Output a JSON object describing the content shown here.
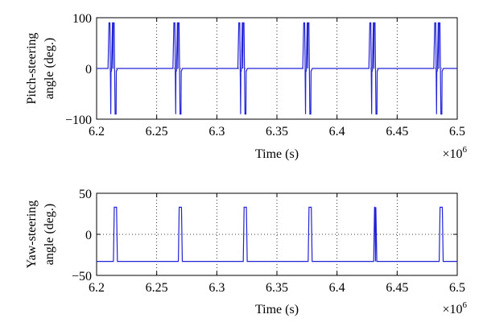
{
  "colors": {
    "line": "#2323d6",
    "axis": "#000000",
    "grid": "#000000"
  },
  "chart_data": [
    {
      "type": "line",
      "xlabel": "Time (s)",
      "ylabel_lines": [
        "Pitch-steering",
        "angle (deg.)"
      ],
      "x_multiplier": "×10",
      "x_multiplier_exp": "6",
      "xlim": [
        6.2,
        6.5
      ],
      "ylim": [
        -100,
        100
      ],
      "xticks": [
        6.2,
        6.25,
        6.3,
        6.35,
        6.4,
        6.45,
        6.5
      ],
      "xtick_labels": [
        "6.2",
        "6.25",
        "6.3",
        "6.35",
        "6.4",
        "6.45",
        "6.5"
      ],
      "yticks": [
        -100,
        0,
        100
      ],
      "ytick_labels": [
        "−100",
        "0",
        "100"
      ],
      "grid": true,
      "series": [
        {
          "x": [
            6.2,
            6.2095,
            6.2103,
            6.2111,
            6.2118,
            6.212,
            6.2124,
            6.2132,
            6.2134,
            6.2136,
            6.2138,
            6.2146,
            6.2154,
            6.2162,
            6.2164,
            6.2166,
            6.2174,
            6.2182,
            6.219,
            6.2635,
            6.2643,
            6.2651,
            6.2658,
            6.266,
            6.2664,
            6.2672,
            6.2674,
            6.2676,
            6.2678,
            6.2686,
            6.2694,
            6.2702,
            6.2704,
            6.2706,
            6.2714,
            6.2722,
            6.273,
            6.3175,
            6.3183,
            6.3191,
            6.3198,
            6.32,
            6.3204,
            6.3212,
            6.3214,
            6.3216,
            6.3218,
            6.3226,
            6.3234,
            6.3242,
            6.3244,
            6.3246,
            6.3254,
            6.3262,
            6.327,
            6.3715,
            6.3723,
            6.3731,
            6.3738,
            6.374,
            6.3744,
            6.3752,
            6.3754,
            6.3756,
            6.3758,
            6.3766,
            6.3774,
            6.3782,
            6.3784,
            6.3786,
            6.3794,
            6.3802,
            6.381,
            6.4265,
            6.4273,
            6.4281,
            6.4288,
            6.429,
            6.4294,
            6.4302,
            6.4304,
            6.4306,
            6.4308,
            6.4316,
            6.4324,
            6.4332,
            6.4334,
            6.4336,
            6.4344,
            6.4352,
            6.436,
            6.4805,
            6.4813,
            6.4821,
            6.4828,
            6.483,
            6.4834,
            6.4842,
            6.4844,
            6.4846,
            6.4848,
            6.4856,
            6.4864,
            6.4872,
            6.4874,
            6.4876,
            6.4884,
            6.4892,
            6.49,
            6.5
          ],
          "y": [
            0,
            0,
            90,
            90,
            -90,
            -5,
            -5,
            90,
            90,
            0,
            90,
            90,
            -90,
            -90,
            -5,
            -5,
            0,
            0,
            0,
            0,
            90,
            90,
            -90,
            -5,
            -5,
            90,
            90,
            0,
            90,
            90,
            -90,
            -90,
            -5,
            -5,
            0,
            0,
            0,
            0,
            90,
            90,
            -90,
            -5,
            -5,
            90,
            90,
            0,
            90,
            90,
            -90,
            -90,
            -5,
            -5,
            0,
            0,
            0,
            0,
            90,
            90,
            -90,
            -5,
            -5,
            90,
            90,
            0,
            90,
            90,
            -90,
            -90,
            -5,
            -5,
            0,
            0,
            0,
            0,
            90,
            90,
            -90,
            -5,
            -5,
            90,
            90,
            0,
            90,
            90,
            -90,
            -90,
            -5,
            -5,
            0,
            0,
            0,
            0,
            90,
            90,
            -90,
            -5,
            -5,
            90,
            90,
            0,
            90,
            90,
            -90,
            -90,
            -5,
            -5,
            0,
            0,
            0,
            0
          ]
        }
      ]
    },
    {
      "type": "line",
      "xlabel": "Time (s)",
      "ylabel_lines": [
        "Yaw-steering",
        "angle (deg.)"
      ],
      "x_multiplier": "×10",
      "x_multiplier_exp": "6",
      "xlim": [
        6.2,
        6.5
      ],
      "ylim": [
        -50,
        50
      ],
      "xticks": [
        6.2,
        6.25,
        6.3,
        6.35,
        6.4,
        6.45,
        6.5
      ],
      "xtick_labels": [
        "6.2",
        "6.25",
        "6.3",
        "6.35",
        "6.4",
        "6.45",
        "6.5"
      ],
      "yticks": [
        -50,
        0,
        50
      ],
      "ytick_labels": [
        "−50",
        "0",
        "50"
      ],
      "grid": true,
      "series": [
        {
          "x": [
            6.2,
            6.214,
            6.2147,
            6.2166,
            6.2173,
            6.268,
            6.2687,
            6.2706,
            6.2713,
            6.322,
            6.3227,
            6.3246,
            6.3253,
            6.376,
            6.3767,
            6.3786,
            6.3793,
            6.4305,
            6.4312,
            6.4315,
            6.432,
            6.4323,
            6.4331,
            6.485,
            6.4857,
            6.4876,
            6.4883,
            6.5
          ],
          "y": [
            -33,
            -33,
            33,
            33,
            -33,
            -33,
            33,
            33,
            -33,
            -33,
            33,
            33,
            -33,
            -33,
            33,
            33,
            -33,
            -33,
            33,
            33,
            -33,
            33,
            -33,
            -33,
            33,
            33,
            -33,
            -33
          ]
        }
      ]
    }
  ]
}
